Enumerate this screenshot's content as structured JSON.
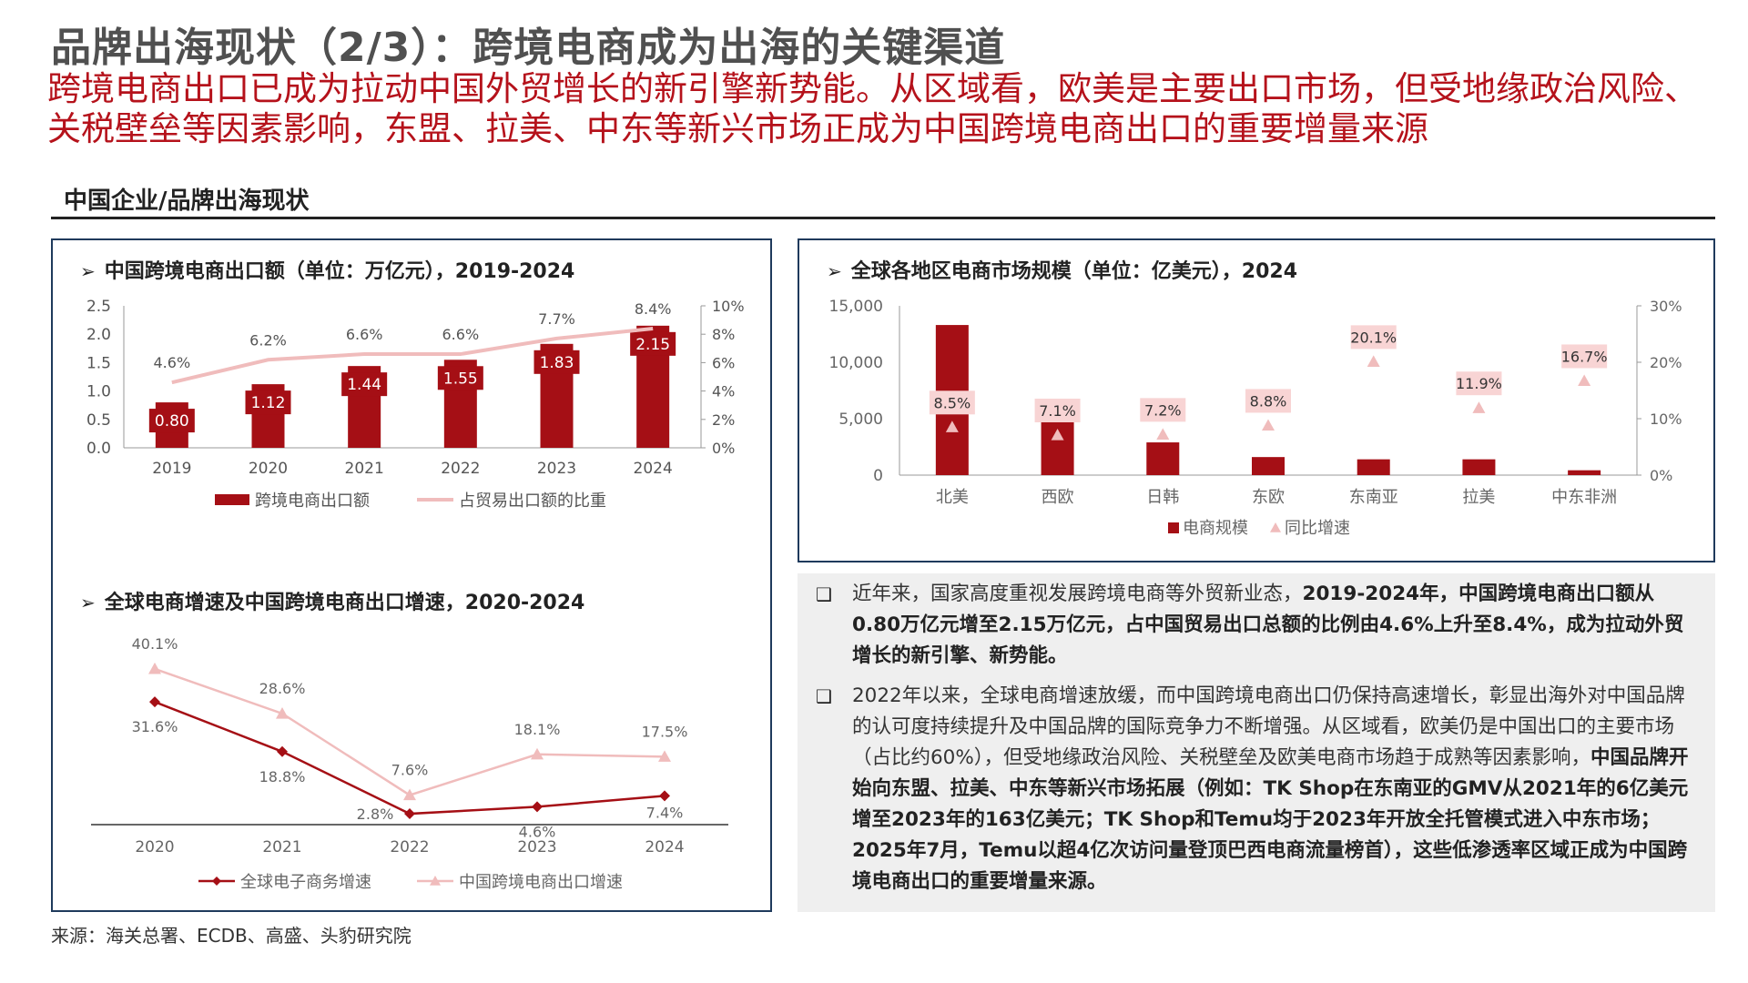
{
  "header": {
    "title": "品牌出海现状（2/3）：跨境电商成为出海的关键渠道",
    "subtitle": "跨境电商出口已成为拉动中国外贸增长的新引擎新势能。从区域看，欧美是主要出口市场，但受地缘政治风险、关税壁垒等因素影响，东盟、拉美、中东等新兴市场正成为中国跨境电商出口的重要增量来源"
  },
  "section": {
    "title": "中国企业/品牌出海现状"
  },
  "panels": {
    "chart1_title": "中国跨境电商出口额（单位：万亿元），2019-2024",
    "chart2_title": "全球电商增速及中国跨境电商出口增速，2020-2024",
    "chart3_title": "全球各地区电商市场规模（单位：亿美元），2024",
    "arrow": "➢"
  },
  "chart_data": [
    {
      "type": "bar",
      "title": "中国跨境电商出口额（单位：万亿元），2019-2024",
      "categories": [
        "2019",
        "2020",
        "2021",
        "2022",
        "2023",
        "2024"
      ],
      "series": [
        {
          "name": "跨境电商出口额",
          "type": "bar",
          "values": [
            0.8,
            1.12,
            1.44,
            1.55,
            1.83,
            2.15
          ],
          "labels": [
            "0.80",
            "1.12",
            "1.44",
            "1.55",
            "1.83",
            "2.15"
          ],
          "axis": "left"
        },
        {
          "name": "占贸易出口额的比重",
          "type": "line",
          "values": [
            4.6,
            6.2,
            6.6,
            6.6,
            7.7,
            8.4
          ],
          "labels": [
            "4.6%",
            "6.2%",
            "6.6%",
            "6.6%",
            "7.7%",
            "8.4%"
          ],
          "axis": "right"
        }
      ],
      "ylim_left": [
        0,
        2.5
      ],
      "ylim_right": [
        0,
        10
      ],
      "yticks_left": [
        "0.0",
        "0.5",
        "1.0",
        "1.5",
        "2.0",
        "2.5"
      ],
      "yticks_right": [
        "0%",
        "2%",
        "4%",
        "6%",
        "8%",
        "10%"
      ],
      "legend": "bottom",
      "grid": false,
      "colors": {
        "bar": "#a50f15",
        "line": "#f0bcbc"
      }
    },
    {
      "type": "line",
      "title": "全球电商增速及中国跨境电商出口增速，2020-2024",
      "categories": [
        "2020",
        "2021",
        "2022",
        "2023",
        "2024"
      ],
      "series": [
        {
          "name": "全球电子商务增速",
          "marker": "diamond",
          "values": [
            31.6,
            18.8,
            2.8,
            4.6,
            7.4
          ],
          "labels": [
            "31.6%",
            "18.8%",
            "2.8%",
            "4.6%",
            "7.4%"
          ]
        },
        {
          "name": "中国跨境电商出口增速",
          "marker": "triangle",
          "values": [
            40.1,
            28.6,
            7.6,
            18.1,
            17.5
          ],
          "labels": [
            "40.1%",
            "28.6%",
            "7.6%",
            "18.1%",
            "17.5%"
          ]
        }
      ],
      "ylim": [
        0,
        45
      ],
      "legend": "bottom",
      "grid": false,
      "colors": {
        "global": "#a50f15",
        "china": "#f0bcbc"
      }
    },
    {
      "type": "bar",
      "title": "全球各地区电商市场规模（单位：亿美元），2024",
      "categories": [
        "北美",
        "西欧",
        "日韩",
        "东欧",
        "东南亚",
        "拉美",
        "中东非洲"
      ],
      "series": [
        {
          "name": "电商规模",
          "type": "bar",
          "values": [
            13300,
            4700,
            2900,
            1600,
            1400,
            1400,
            430
          ],
          "axis": "left"
        },
        {
          "name": "同比增速",
          "type": "scatter",
          "marker": "triangle",
          "values": [
            8.5,
            7.1,
            7.2,
            8.8,
            20.1,
            11.9,
            16.7
          ],
          "labels": [
            "8.5%",
            "7.1%",
            "7.2%",
            "8.8%",
            "20.1%",
            "11.9%",
            "16.7%"
          ],
          "axis": "right"
        }
      ],
      "ylim_left": [
        0,
        15000
      ],
      "ylim_right": [
        0,
        30
      ],
      "yticks_left": [
        "0",
        "5,000",
        "10,000",
        "15,000"
      ],
      "yticks_right": [
        "0%",
        "10%",
        "20%",
        "30%"
      ],
      "legend": "bottom",
      "grid": false,
      "colors": {
        "bar": "#a50f15",
        "marker": "#f0bcbc"
      }
    }
  ],
  "text_box": {
    "bullet_glyph": "❑",
    "bullets": [
      {
        "plain": "近年来，国家高度重视发展跨境电商等外贸新业态，",
        "bold": "2019-2024年，中国跨境电商出口额从0.80万亿元增至2.15万亿元，占中国贸易出口总额的比例由4.6%上升至8.4%，成为拉动外贸增长的新引擎、新势能。"
      },
      {
        "plain": "2022年以来，全球电商增速放缓，而中国跨境电商出口仍保持高速增长，彰显出海外对中国品牌的认可度持续提升及中国品牌的国际竞争力不断增强。从区域看，欧美仍是中国出口的主要市场（占比约60%），但受地缘政治风险、关税壁垒及欧美电商市场趋于成熟等因素影响，",
        "bold": "中国品牌开始向东盟、拉美、中东等新兴市场拓展（例如：TK Shop在东南亚的GMV从2021年的6亿美元增至2023年的163亿美元；TK Shop和Temu均于2023年开放全托管模式进入中东市场；2025年7月，Temu以超4亿次访问量登顶巴西电商流量榜首），这些低渗透率区域正成为中国跨境电商出口的重要增量来源。"
      }
    ]
  },
  "footer": {
    "source": "来源：海关总署、ECDB、高盛、头豹研究院"
  }
}
